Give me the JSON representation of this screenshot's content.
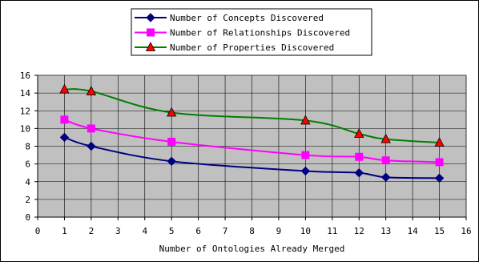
{
  "chart_data": {
    "type": "line",
    "title": "",
    "xlabel": "Number of Ontologies Already Merged",
    "ylabel": "",
    "xlim": [
      0,
      16
    ],
    "ylim": [
      0,
      16
    ],
    "x_ticks": [
      0,
      1,
      2,
      3,
      4,
      5,
      6,
      7,
      8,
      9,
      10,
      11,
      12,
      13,
      14,
      15,
      16
    ],
    "y_ticks": [
      0,
      2,
      4,
      6,
      8,
      10,
      12,
      14,
      16
    ],
    "grid": true,
    "plot_background": "#c0c0c0",
    "legend_position": "top-center",
    "series": [
      {
        "name": "Number of Concepts Discovered",
        "color": "#00007f",
        "marker": "diamond",
        "x": [
          1,
          2,
          5,
          10,
          12,
          13,
          15
        ],
        "y": [
          9.0,
          8.0,
          6.3,
          5.2,
          5.0,
          4.5,
          4.4
        ]
      },
      {
        "name": "Number of Relationships Discovered",
        "color": "#ff00ff",
        "marker": "square",
        "x": [
          1,
          2,
          5,
          10,
          12,
          13,
          15
        ],
        "y": [
          11.0,
          10.0,
          8.5,
          7.0,
          6.8,
          6.4,
          6.2
        ]
      },
      {
        "name": "Number of Properties Discovered",
        "color": "#007f00",
        "marker": "triangle",
        "marker_fill": "#ff0000",
        "x": [
          1,
          2,
          5,
          10,
          12,
          13,
          15
        ],
        "y": [
          14.4,
          14.2,
          11.8,
          10.9,
          9.4,
          8.8,
          8.4
        ]
      }
    ]
  }
}
